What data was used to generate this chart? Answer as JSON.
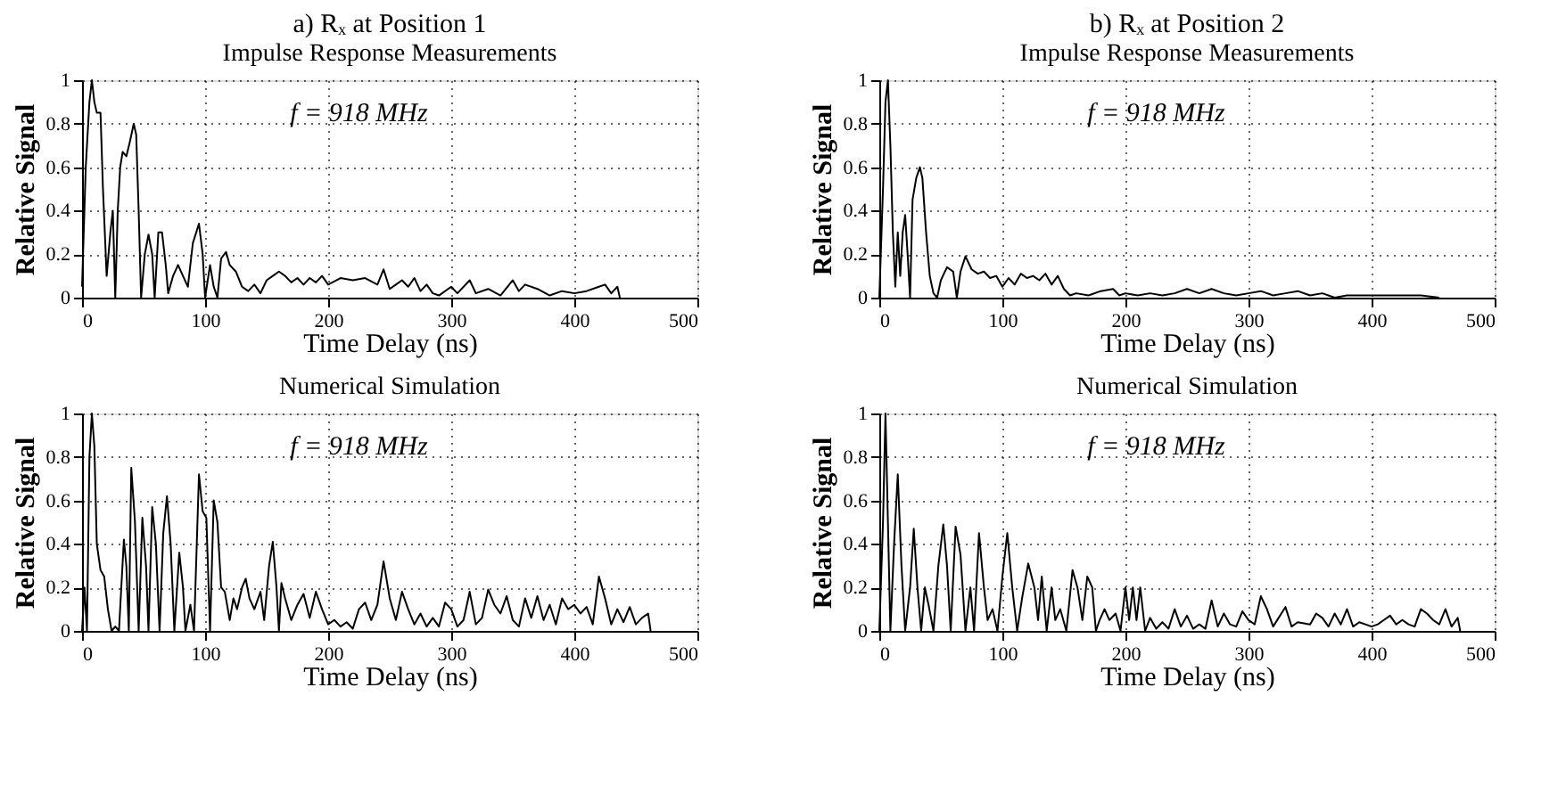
{
  "chart_data": [
    {
      "type": "line",
      "title": "a) Rₓ at Position 1",
      "subtitle": "Impulse Response Measurements",
      "xlabel": "Time Delay (ns)",
      "ylabel": "Relative Signal",
      "annotations": [
        "f = 918 MHz"
      ],
      "xlim": [
        0,
        500
      ],
      "ylim": [
        0,
        1
      ],
      "xticks": [
        0,
        100,
        200,
        300,
        400,
        500
      ],
      "yticks": [
        0,
        0.2,
        0.4,
        0.6,
        0.8,
        1
      ],
      "grid": true,
      "x": [
        0,
        3,
        6,
        8,
        10,
        12,
        15,
        17,
        20,
        23,
        25,
        27,
        29,
        31,
        33,
        36,
        39,
        42,
        44,
        46,
        48,
        51,
        54,
        57,
        59,
        62,
        65,
        68,
        70,
        74,
        78,
        82,
        86,
        90,
        95,
        98,
        100,
        104,
        107,
        110,
        113,
        117,
        120,
        125,
        130,
        135,
        140,
        145,
        150,
        155,
        160,
        165,
        170,
        175,
        180,
        185,
        190,
        195,
        200,
        210,
        220,
        230,
        240,
        245,
        250,
        255,
        260,
        265,
        270,
        275,
        280,
        285,
        290,
        300,
        305,
        315,
        320,
        330,
        340,
        350,
        355,
        360,
        370,
        380,
        390,
        400,
        410,
        420,
        425,
        430,
        435,
        437
      ],
      "series": [
        {
          "color": "#000000",
          "values": [
            0.05,
            0.6,
            0.9,
            1.0,
            0.9,
            0.85,
            0.85,
            0.5,
            0.1,
            0.3,
            0.4,
            0.0,
            0.4,
            0.6,
            0.67,
            0.65,
            0.72,
            0.8,
            0.75,
            0.4,
            0.0,
            0.2,
            0.29,
            0.2,
            0.0,
            0.3,
            0.3,
            0.15,
            0.02,
            0.1,
            0.15,
            0.1,
            0.05,
            0.25,
            0.34,
            0.2,
            0.0,
            0.15,
            0.05,
            0.0,
            0.18,
            0.21,
            0.15,
            0.12,
            0.05,
            0.03,
            0.06,
            0.02,
            0.08,
            0.1,
            0.12,
            0.1,
            0.07,
            0.09,
            0.06,
            0.09,
            0.07,
            0.1,
            0.06,
            0.09,
            0.08,
            0.09,
            0.06,
            0.13,
            0.04,
            0.06,
            0.08,
            0.05,
            0.09,
            0.03,
            0.06,
            0.02,
            0.01,
            0.05,
            0.02,
            0.08,
            0.02,
            0.04,
            0.01,
            0.08,
            0.03,
            0.06,
            0.04,
            0.01,
            0.03,
            0.02,
            0.03,
            0.05,
            0.06,
            0.02,
            0.05,
            0.0
          ]
        }
      ]
    },
    {
      "type": "line",
      "title": "b) Rₓ at Position 2",
      "subtitle": "Impulse Response Measurements",
      "xlabel": "Time Delay (ns)",
      "ylabel": "Relative Signal",
      "annotations": [
        "f = 918 MHz"
      ],
      "xlim": [
        0,
        500
      ],
      "ylim": [
        0,
        1
      ],
      "xticks": [
        0,
        100,
        200,
        300,
        400,
        500
      ],
      "yticks": [
        0,
        0.2,
        0.4,
        0.6,
        0.8,
        1
      ],
      "grid": true,
      "x": [
        0,
        3,
        5,
        7,
        9,
        11,
        13,
        15,
        17,
        19,
        21,
        23,
        25,
        27,
        30,
        33,
        35,
        38,
        41,
        44,
        47,
        50,
        55,
        60,
        63,
        66,
        70,
        75,
        80,
        85,
        90,
        95,
        100,
        105,
        110,
        115,
        120,
        125,
        130,
        135,
        140,
        145,
        150,
        155,
        160,
        170,
        180,
        190,
        195,
        200,
        210,
        220,
        230,
        240,
        250,
        260,
        270,
        280,
        290,
        300,
        310,
        320,
        330,
        340,
        350,
        360,
        370,
        380,
        390,
        400,
        420,
        440,
        455
      ],
      "series": [
        {
          "color": "#000000",
          "values": [
            0.0,
            0.5,
            0.9,
            1.0,
            0.7,
            0.3,
            0.05,
            0.3,
            0.1,
            0.3,
            0.38,
            0.2,
            0.0,
            0.45,
            0.55,
            0.6,
            0.55,
            0.3,
            0.1,
            0.02,
            0.0,
            0.08,
            0.14,
            0.12,
            0.0,
            0.12,
            0.19,
            0.13,
            0.11,
            0.12,
            0.09,
            0.1,
            0.05,
            0.09,
            0.06,
            0.11,
            0.09,
            0.1,
            0.08,
            0.11,
            0.06,
            0.1,
            0.04,
            0.01,
            0.02,
            0.01,
            0.03,
            0.04,
            0.01,
            0.02,
            0.01,
            0.02,
            0.01,
            0.02,
            0.04,
            0.02,
            0.04,
            0.02,
            0.01,
            0.02,
            0.03,
            0.01,
            0.02,
            0.03,
            0.01,
            0.02,
            0.0,
            0.01,
            0.01,
            0.01,
            0.01,
            0.01,
            0.0
          ]
        }
      ]
    },
    {
      "type": "line",
      "title": "Numerical Simulation",
      "xlabel": "Time Delay (ns)",
      "ylabel": "Relative Signal",
      "annotations": [
        "f = 918 MHz"
      ],
      "xlim": [
        0,
        500
      ],
      "ylim": [
        0,
        1
      ],
      "xticks": [
        0,
        100,
        200,
        300,
        400,
        500
      ],
      "yticks": [
        0,
        0.2,
        0.4,
        0.6,
        0.8,
        1
      ],
      "grid": true,
      "x": [
        0,
        2,
        4,
        6,
        8,
        10,
        12,
        15,
        18,
        21,
        24,
        27,
        30,
        34,
        36,
        38,
        40,
        43,
        46,
        49,
        52,
        54,
        57,
        60,
        63,
        66,
        69,
        72,
        75,
        79,
        82,
        84,
        88,
        91,
        95,
        98,
        101,
        104,
        107,
        110,
        113,
        116,
        120,
        123,
        126,
        130,
        133,
        136,
        140,
        145,
        148,
        152,
        155,
        158,
        160,
        162,
        165,
        170,
        175,
        180,
        185,
        190,
        195,
        200,
        205,
        210,
        215,
        220,
        225,
        230,
        235,
        240,
        245,
        250,
        255,
        260,
        265,
        270,
        275,
        280,
        285,
        290,
        295,
        300,
        305,
        310,
        315,
        320,
        325,
        330,
        335,
        340,
        345,
        350,
        355,
        360,
        365,
        370,
        375,
        380,
        385,
        390,
        395,
        400,
        405,
        410,
        415,
        420,
        425,
        430,
        435,
        440,
        445,
        450,
        455,
        460,
        462
      ],
      "series": [
        {
          "color": "#000000",
          "values": [
            0.0,
            0.2,
            0.0,
            0.8,
            1.0,
            0.85,
            0.4,
            0.28,
            0.25,
            0.1,
            0.0,
            0.02,
            0.0,
            0.42,
            0.3,
            0.0,
            0.75,
            0.5,
            0.0,
            0.52,
            0.3,
            0.0,
            0.57,
            0.4,
            0.0,
            0.45,
            0.62,
            0.4,
            0.0,
            0.36,
            0.2,
            0.0,
            0.12,
            0.0,
            0.72,
            0.55,
            0.52,
            0.0,
            0.6,
            0.5,
            0.2,
            0.18,
            0.05,
            0.15,
            0.1,
            0.2,
            0.24,
            0.15,
            0.1,
            0.18,
            0.05,
            0.3,
            0.41,
            0.2,
            0.0,
            0.22,
            0.15,
            0.05,
            0.12,
            0.17,
            0.06,
            0.18,
            0.1,
            0.03,
            0.05,
            0.02,
            0.04,
            0.01,
            0.1,
            0.13,
            0.05,
            0.12,
            0.32,
            0.15,
            0.05,
            0.18,
            0.1,
            0.03,
            0.08,
            0.02,
            0.06,
            0.02,
            0.13,
            0.1,
            0.02,
            0.05,
            0.18,
            0.03,
            0.06,
            0.19,
            0.12,
            0.08,
            0.16,
            0.05,
            0.02,
            0.15,
            0.06,
            0.16,
            0.05,
            0.12,
            0.03,
            0.15,
            0.1,
            0.12,
            0.08,
            0.11,
            0.03,
            0.25,
            0.15,
            0.03,
            0.1,
            0.04,
            0.11,
            0.03,
            0.06,
            0.08,
            0.0
          ]
        }
      ]
    },
    {
      "type": "line",
      "title": "Numerical Simulation",
      "xlabel": "Time Delay (ns)",
      "ylabel": "Relative Signal",
      "annotations": [
        "f = 918 MHz"
      ],
      "xlim": [
        0,
        500
      ],
      "ylim": [
        0,
        1
      ],
      "xticks": [
        0,
        100,
        200,
        300,
        400,
        500
      ],
      "yticks": [
        0,
        0.2,
        0.4,
        0.6,
        0.8,
        1
      ],
      "grid": true,
      "x": [
        0,
        3,
        5,
        7,
        9,
        12,
        15,
        18,
        21,
        25,
        28,
        31,
        34,
        37,
        40,
        44,
        48,
        52,
        55,
        58,
        62,
        66,
        70,
        74,
        77,
        81,
        85,
        88,
        92,
        96,
        100,
        104,
        108,
        112,
        116,
        121,
        126,
        129,
        132,
        136,
        140,
        143,
        147,
        152,
        157,
        161,
        165,
        169,
        173,
        176,
        179,
        183,
        187,
        192,
        196,
        200,
        203,
        206,
        209,
        212,
        216,
        220,
        225,
        230,
        235,
        240,
        245,
        250,
        255,
        260,
        265,
        270,
        275,
        280,
        285,
        290,
        295,
        300,
        305,
        310,
        315,
        320,
        330,
        335,
        340,
        350,
        355,
        360,
        365,
        370,
        375,
        380,
        385,
        390,
        400,
        405,
        410,
        415,
        420,
        425,
        430,
        435,
        440,
        445,
        450,
        455,
        460,
        465,
        470,
        472
      ],
      "series": [
        {
          "color": "#000000",
          "values": [
            0.0,
            0.5,
            1.0,
            0.5,
            0.0,
            0.4,
            0.72,
            0.3,
            0.0,
            0.2,
            0.47,
            0.2,
            0.0,
            0.2,
            0.12,
            0.0,
            0.3,
            0.49,
            0.3,
            0.0,
            0.48,
            0.35,
            0.0,
            0.2,
            0.0,
            0.45,
            0.2,
            0.05,
            0.1,
            0.0,
            0.25,
            0.45,
            0.2,
            0.0,
            0.15,
            0.31,
            0.2,
            0.05,
            0.25,
            0.0,
            0.2,
            0.05,
            0.1,
            0.0,
            0.28,
            0.2,
            0.05,
            0.25,
            0.2,
            0.0,
            0.05,
            0.1,
            0.05,
            0.08,
            0.0,
            0.2,
            0.05,
            0.2,
            0.05,
            0.2,
            0.0,
            0.06,
            0.01,
            0.04,
            0.01,
            0.1,
            0.02,
            0.07,
            0.01,
            0.03,
            0.01,
            0.14,
            0.02,
            0.08,
            0.03,
            0.02,
            0.09,
            0.05,
            0.03,
            0.16,
            0.1,
            0.02,
            0.11,
            0.02,
            0.04,
            0.03,
            0.08,
            0.06,
            0.02,
            0.08,
            0.03,
            0.1,
            0.02,
            0.04,
            0.02,
            0.03,
            0.05,
            0.07,
            0.03,
            0.05,
            0.03,
            0.02,
            0.1,
            0.08,
            0.05,
            0.03,
            0.1,
            0.02,
            0.06,
            0.0
          ]
        }
      ]
    }
  ]
}
